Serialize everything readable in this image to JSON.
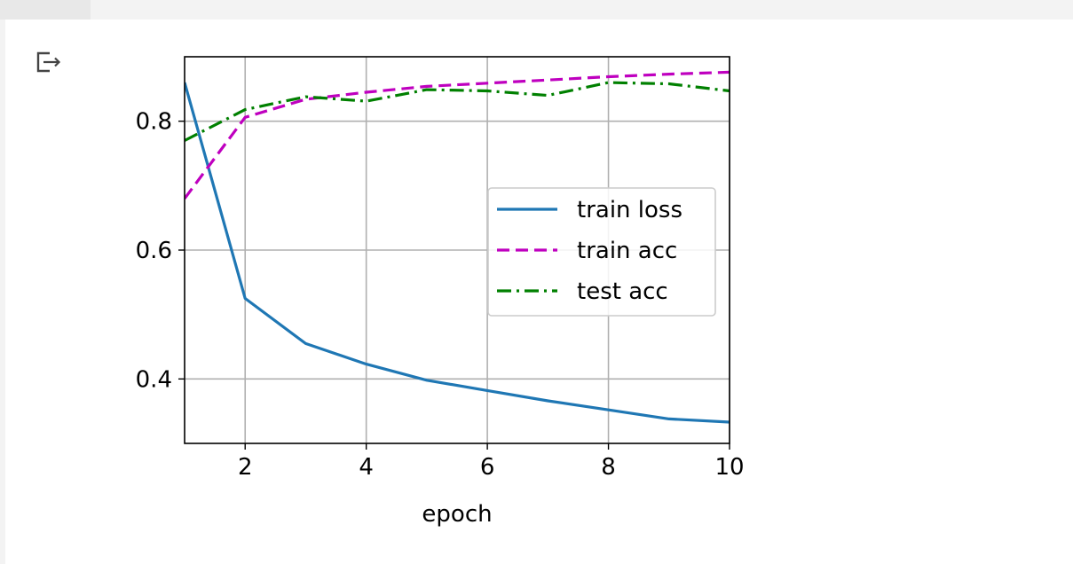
{
  "output_cell": {
    "icon": "output-redirect-icon"
  },
  "chart_data": {
    "type": "line",
    "title": "",
    "xlabel": "epoch",
    "ylabel": "",
    "xlim": [
      1,
      10
    ],
    "ylim": [
      0.3,
      0.9
    ],
    "x": [
      1,
      2,
      3,
      4,
      5,
      6,
      7,
      8,
      9,
      10
    ],
    "xticks": [
      2,
      4,
      6,
      8,
      10
    ],
    "yticks": [
      0.4,
      0.6,
      0.8
    ],
    "xtick_labels": [
      "2",
      "4",
      "6",
      "8",
      "10"
    ],
    "ytick_labels": [
      "0.4",
      "0.6",
      "0.8"
    ],
    "grid": true,
    "legend_position": "center-right",
    "series": [
      {
        "name": "train loss",
        "color": "#1f77b4",
        "style": "solid",
        "values": [
          0.86,
          0.525,
          0.455,
          0.423,
          0.398,
          0.382,
          0.366,
          0.352,
          0.338,
          0.333
        ]
      },
      {
        "name": "train acc",
        "color": "#bf00bf",
        "style": "dashed",
        "values": [
          0.68,
          0.806,
          0.834,
          0.845,
          0.854,
          0.859,
          0.864,
          0.869,
          0.873,
          0.876
        ]
      },
      {
        "name": "test acc",
        "color": "#008000",
        "style": "dashdot",
        "values": [
          0.77,
          0.818,
          0.838,
          0.831,
          0.849,
          0.847,
          0.84,
          0.86,
          0.858,
          0.847
        ]
      }
    ]
  }
}
